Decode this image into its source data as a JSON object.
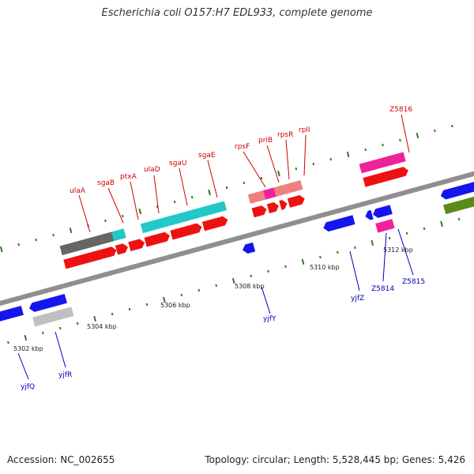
{
  "title": "Escherichia coli O157:H7 EDL933, complete genome",
  "footer": {
    "accession": "Accession: NC_002655",
    "summary": "Topology: circular; Length: 5,528,445 bp; Genes: 5,426"
  },
  "colors": {
    "backbone": "#8f8f8f",
    "tick": "#2e7d1e",
    "label_top": "#cc0000",
    "label_bottom": "#0000b4",
    "cds_red": "#ee1111",
    "gene_cyan": "#22c8c8",
    "gene_gray": "#666666",
    "gene_lightgray": "#c0c0c0",
    "gene_pink": "#f08080",
    "gene_magenta": "#ee2299",
    "gene_blue": "#1515ee",
    "gene_olive": "#5a8a1a"
  },
  "axis": {
    "unit": "kbp",
    "ticks": [
      {
        "label": "5302 kbp"
      },
      {
        "label": "5304 kbp"
      },
      {
        "label": "5306 kbp"
      },
      {
        "label": "5308 kbp"
      },
      {
        "label": "5310 kbp"
      },
      {
        "label": "5312 kbp"
      }
    ]
  },
  "labels_top": [
    "ulaA",
    "sgaB",
    "ptxA",
    "ulaD",
    "sgaU",
    "sgaE",
    "rpsF",
    "priB",
    "rpsR",
    "rplI",
    "Z5816"
  ],
  "labels_bottom": [
    "yjfQ",
    "yjfR",
    "yjfY",
    "yjfZ",
    "Z5814",
    "Z5815"
  ]
}
